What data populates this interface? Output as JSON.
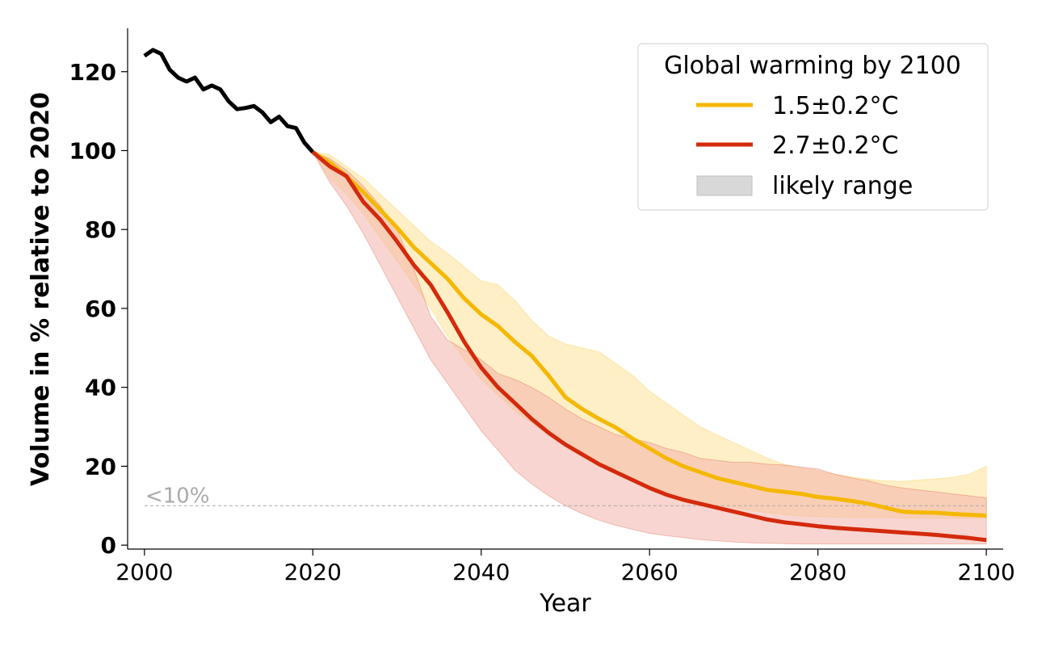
{
  "chart_data": {
    "type": "line",
    "xlabel": "Year",
    "ylabel": "Volume in % relative to 2020",
    "xlim": [
      1998,
      2102
    ],
    "ylim": [
      -1,
      131
    ],
    "xticks": [
      2000,
      2020,
      2040,
      2060,
      2080,
      2100
    ],
    "yticks": [
      0,
      20,
      40,
      60,
      80,
      100,
      120
    ],
    "grid": false,
    "legend": {
      "title": "Global warming by 2100",
      "placement": "top-right",
      "entries": [
        {
          "label": "1.5±0.2°C",
          "kind": "line",
          "color": "#f5b800"
        },
        {
          "label": "2.7±0.2°C",
          "kind": "line",
          "color": "#d42a0c"
        },
        {
          "label": "likely range",
          "kind": "patch",
          "color": "#d8d8d8"
        }
      ]
    },
    "threshold": {
      "y": 10,
      "label": "<10%",
      "color": "#aaaaaa"
    },
    "series": [
      {
        "kind": "observed",
        "color": "#000000",
        "x": [
          2000,
          2001,
          2002,
          2003,
          2004,
          2005,
          2006,
          2007,
          2008,
          2009,
          2010,
          2011,
          2012,
          2013,
          2014,
          2015,
          2016,
          2017,
          2018,
          2019,
          2020
        ],
        "values": [
          124,
          125.5,
          124.5,
          120.5,
          118.5,
          117.5,
          118.5,
          115.5,
          116.5,
          115.5,
          112.5,
          110.5,
          110.8,
          111.3,
          109.7,
          107.2,
          108.6,
          106.2,
          105.7,
          102,
          99.6
        ]
      },
      {
        "name": "1.5±0.2°C",
        "color": "#f5b800",
        "band_color": "#fde9b3",
        "x": [
          2020,
          2022,
          2024,
          2026,
          2028,
          2030,
          2032,
          2034,
          2036,
          2038,
          2040,
          2042,
          2044,
          2046,
          2048,
          2050,
          2052,
          2054,
          2056,
          2058,
          2060,
          2062,
          2064,
          2066,
          2068,
          2070,
          2072,
          2074,
          2076,
          2078,
          2080,
          2082,
          2084,
          2086,
          2088,
          2090,
          2092,
          2094,
          2096,
          2098,
          2100
        ],
        "values": [
          99.6,
          97,
          93.5,
          89.5,
          85,
          80.5,
          75.5,
          71.5,
          67.5,
          62.5,
          58.5,
          55.5,
          51.5,
          48,
          43,
          37.5,
          34.5,
          32,
          29.8,
          27,
          24.5,
          22,
          20,
          18.5,
          17,
          16,
          15,
          14,
          13.5,
          13,
          12.2,
          11.8,
          11.2,
          10.5,
          9.5,
          8.5,
          8.3,
          8.2,
          7.9,
          7.7,
          7.5
        ],
        "low": [
          99.6,
          93,
          89,
          84,
          78,
          72,
          66,
          60,
          53,
          47,
          42,
          38,
          34,
          31,
          28,
          25,
          22.5,
          20.5,
          18.5,
          16.5,
          15,
          13.5,
          12.3,
          11.3,
          10.3,
          9.5,
          8.8,
          8.2,
          7.8,
          7.4,
          7.2,
          7.1,
          7,
          7,
          7,
          6.9,
          6.8,
          6.8,
          6.8,
          6.8,
          6.8
        ],
        "high": [
          99.6,
          99,
          96,
          93,
          89,
          85,
          81,
          77,
          74,
          70.5,
          67,
          66,
          62,
          57,
          53,
          51,
          50,
          49,
          46,
          43,
          39,
          36,
          33,
          30,
          28,
          26,
          24,
          22,
          20.5,
          19.5,
          18.8,
          18,
          17.3,
          16.7,
          16.3,
          16.2,
          16.5,
          16.8,
          17.2,
          18,
          20
        ]
      },
      {
        "name": "2.7±0.2°C",
        "color": "#d42a0c",
        "band_color": "#f2b3aa",
        "x": [
          2020,
          2022,
          2024,
          2026,
          2028,
          2030,
          2032,
          2034,
          2036,
          2038,
          2040,
          2042,
          2044,
          2046,
          2048,
          2050,
          2052,
          2054,
          2056,
          2058,
          2060,
          2062,
          2064,
          2066,
          2068,
          2070,
          2072,
          2074,
          2076,
          2078,
          2080,
          2082,
          2084,
          2086,
          2088,
          2090,
          2092,
          2094,
          2096,
          2098,
          2100
        ],
        "values": [
          99.6,
          96,
          93.5,
          87,
          82.5,
          77,
          71,
          66,
          59,
          51.5,
          45,
          40,
          36,
          32,
          28.5,
          25.5,
          23,
          20.5,
          18.5,
          16.5,
          14.5,
          12.8,
          11.5,
          10.5,
          9.5,
          8.5,
          7.5,
          6.5,
          5.8,
          5.3,
          4.8,
          4.4,
          4.1,
          3.8,
          3.5,
          3.2,
          2.9,
          2.6,
          2.2,
          1.8,
          1.3
        ],
        "low": [
          99.6,
          92,
          86,
          79,
          71,
          63,
          55,
          47,
          41,
          35,
          29,
          24,
          19,
          15.5,
          12.5,
          10,
          8,
          6.3,
          5,
          4,
          3,
          2.4,
          1.9,
          1.4,
          1.1,
          0.8,
          0.6,
          0.5,
          0.4,
          0.3,
          0.3,
          0.3,
          0.3,
          0.3,
          0.3,
          0.3,
          0.3,
          0.3,
          0.3,
          0.3,
          0.3
        ],
        "high": [
          99.6,
          98,
          95,
          91,
          86,
          80,
          70,
          58,
          52,
          49.5,
          47,
          43.5,
          42,
          40,
          37.5,
          34.5,
          32,
          30,
          28,
          27,
          26,
          24.5,
          23.5,
          22,
          21.5,
          21,
          21,
          20.5,
          20.3,
          19.8,
          19.3,
          18,
          17,
          16.3,
          15.2,
          14.5,
          14,
          13.5,
          13,
          12.5,
          12
        ]
      }
    ]
  }
}
